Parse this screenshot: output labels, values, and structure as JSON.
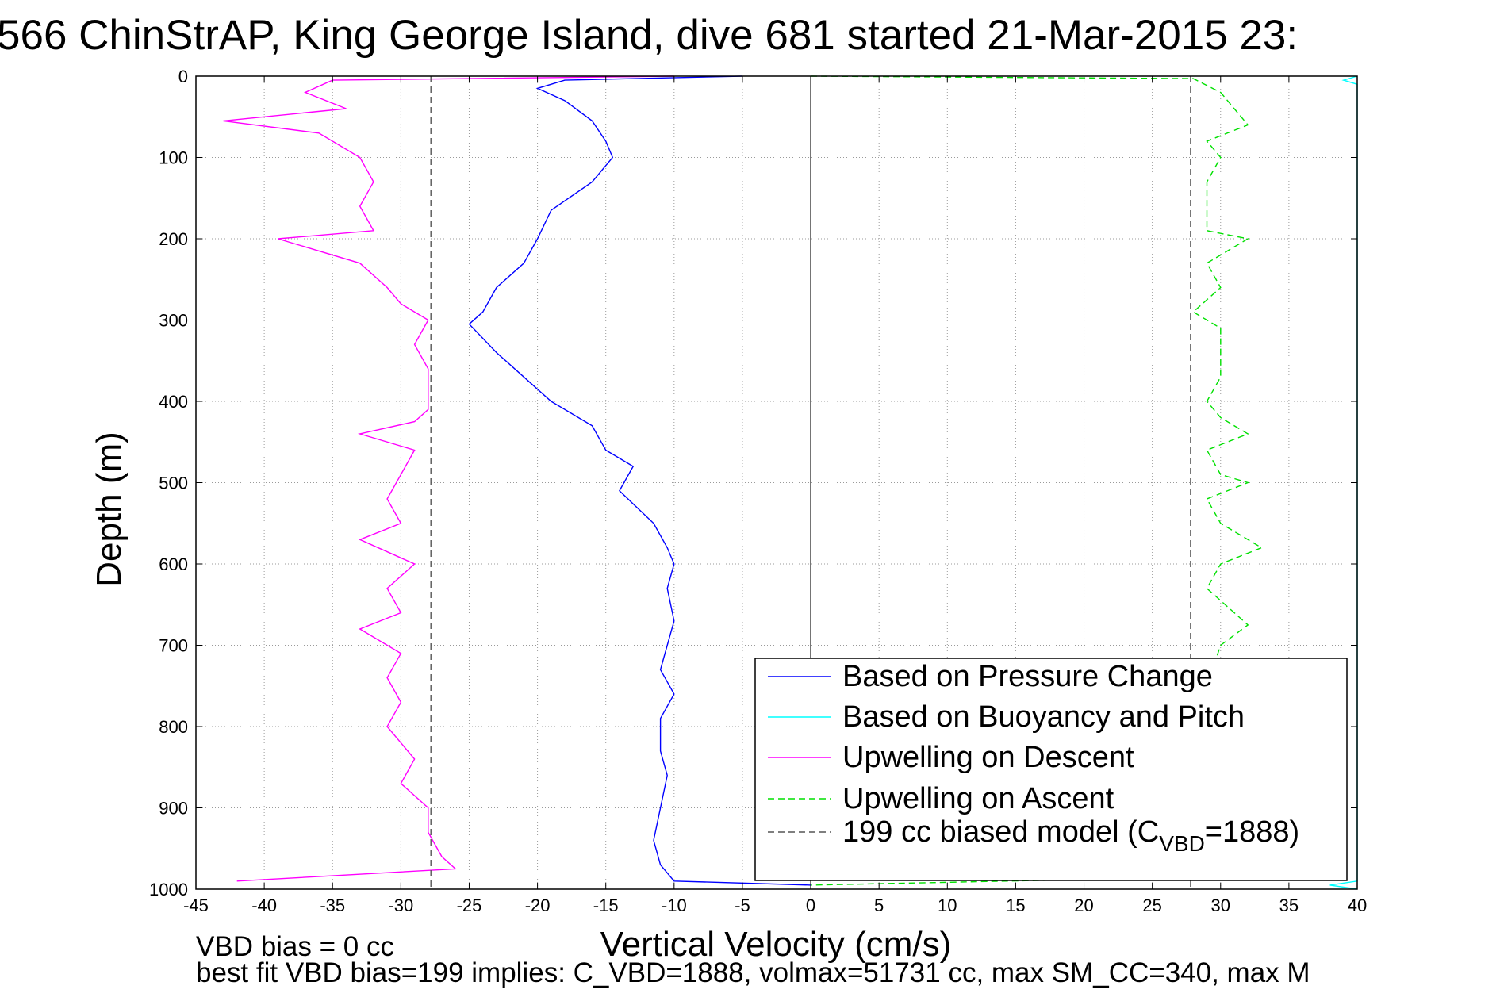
{
  "chart_data": {
    "type": "line",
    "title": "566 ChinStrAP, King George Island, dive 681 started 21-Mar-2015 23:",
    "xlabel": "Vertical Velocity (cm/s)",
    "ylabel": "Depth (m)",
    "xlim": [
      -45,
      40
    ],
    "ylim": [
      0,
      1000
    ],
    "y_reversed": true,
    "grid": true,
    "x_ticks": [
      -45,
      -40,
      -35,
      -30,
      -25,
      -20,
      -15,
      -10,
      -5,
      0,
      5,
      10,
      15,
      20,
      25,
      30,
      35,
      40
    ],
    "y_ticks": [
      0,
      100,
      200,
      300,
      400,
      500,
      600,
      700,
      800,
      900,
      1000
    ],
    "legend_position": "bottom-right",
    "notes": [
      "VBD bias = 0 cc",
      "best fit VBD bias=199 implies: C_VBD=1888, volmax=51731 cc, max SM_CC=340, max M"
    ],
    "series": [
      {
        "name": "Based on Pressure Change",
        "color": "#0000ff",
        "style": "solid",
        "points": [
          [
            -5,
            0
          ],
          [
            -18,
            5
          ],
          [
            -20,
            15
          ],
          [
            -18,
            30
          ],
          [
            -16,
            55
          ],
          [
            -15,
            80
          ],
          [
            -14.5,
            100
          ],
          [
            -16,
            130
          ],
          [
            -19,
            165
          ],
          [
            -20,
            200
          ],
          [
            -21,
            230
          ],
          [
            -23,
            260
          ],
          [
            -24,
            290
          ],
          [
            -25,
            305
          ],
          [
            -23,
            340
          ],
          [
            -21,
            370
          ],
          [
            -19,
            400
          ],
          [
            -16,
            430
          ],
          [
            -15,
            460
          ],
          [
            -13,
            480
          ],
          [
            -14,
            510
          ],
          [
            -11.5,
            550
          ],
          [
            -10.5,
            580
          ],
          [
            -10,
            600
          ],
          [
            -10.5,
            630
          ],
          [
            -10,
            670
          ],
          [
            -10.5,
            700
          ],
          [
            -11,
            730
          ],
          [
            -10,
            760
          ],
          [
            -11,
            790
          ],
          [
            -11,
            830
          ],
          [
            -10.5,
            860
          ],
          [
            -11,
            900
          ],
          [
            -11.5,
            940
          ],
          [
            -11,
            970
          ],
          [
            -10,
            990
          ],
          [
            0,
            995
          ]
        ]
      },
      {
        "name": "Based on Buoyancy and Pitch",
        "color": "#00ffff",
        "style": "solid",
        "points": [
          [
            40,
            0
          ],
          [
            39,
            5
          ],
          [
            40,
            10
          ],
          [
            40,
            990
          ],
          [
            38,
            995
          ],
          [
            40,
            1000
          ]
        ]
      },
      {
        "name": "Upwelling on Descent",
        "color": "#ff00ff",
        "style": "solid",
        "points": [
          [
            -10,
            0
          ],
          [
            -35,
            5
          ],
          [
            -37,
            20
          ],
          [
            -34,
            40
          ],
          [
            -43,
            55
          ],
          [
            -36,
            70
          ],
          [
            -33,
            100
          ],
          [
            -32,
            130
          ],
          [
            -33,
            160
          ],
          [
            -32,
            190
          ],
          [
            -39,
            200
          ],
          [
            -33,
            230
          ],
          [
            -31,
            260
          ],
          [
            -30,
            280
          ],
          [
            -28,
            300
          ],
          [
            -29,
            330
          ],
          [
            -28,
            360
          ],
          [
            -28,
            390
          ],
          [
            -28,
            410
          ],
          [
            -29,
            425
          ],
          [
            -33,
            440
          ],
          [
            -29,
            460
          ],
          [
            -30,
            490
          ],
          [
            -31,
            520
          ],
          [
            -30,
            550
          ],
          [
            -33,
            570
          ],
          [
            -29,
            600
          ],
          [
            -31,
            630
          ],
          [
            -30,
            660
          ],
          [
            -33,
            680
          ],
          [
            -30,
            710
          ],
          [
            -31,
            740
          ],
          [
            -30,
            770
          ],
          [
            -31,
            800
          ],
          [
            -29,
            840
          ],
          [
            -30,
            870
          ],
          [
            -28,
            900
          ],
          [
            -28,
            930
          ],
          [
            -27,
            960
          ],
          [
            -26,
            975
          ],
          [
            -42,
            990
          ]
        ]
      },
      {
        "name": "Upwelling on Ascent",
        "color": "#00e000",
        "style": "dashed",
        "points": [
          [
            0,
            0
          ],
          [
            28,
            3
          ],
          [
            30,
            20
          ],
          [
            31,
            40
          ],
          [
            32,
            60
          ],
          [
            29,
            80
          ],
          [
            30,
            100
          ],
          [
            29,
            130
          ],
          [
            29,
            160
          ],
          [
            29,
            190
          ],
          [
            32,
            200
          ],
          [
            29,
            230
          ],
          [
            30,
            260
          ],
          [
            28,
            290
          ],
          [
            30,
            310
          ],
          [
            30,
            340
          ],
          [
            30,
            370
          ],
          [
            29,
            400
          ],
          [
            30,
            420
          ],
          [
            32,
            440
          ],
          [
            29,
            460
          ],
          [
            30,
            490
          ],
          [
            32,
            500
          ],
          [
            29,
            520
          ],
          [
            30,
            550
          ],
          [
            33,
            580
          ],
          [
            30,
            600
          ],
          [
            29,
            630
          ],
          [
            31,
            660
          ],
          [
            32,
            675
          ],
          [
            30,
            700
          ],
          [
            29,
            750
          ],
          [
            30,
            800
          ],
          [
            29,
            850
          ],
          [
            29,
            900
          ],
          [
            29,
            950
          ],
          [
            29,
            985
          ],
          [
            0,
            995
          ]
        ]
      },
      {
        "name": "199 cc biased model (C_VBD=1888)",
        "legend_label": "199 cc biased model (C",
        "legend_subscript": "VBD",
        "legend_suffix": "=1888)",
        "color": "#555555",
        "style": "dashed",
        "points": [
          [
            -27.8,
            0
          ],
          [
            -27.8,
            1000
          ]
        ],
        "points_right": [
          [
            27.8,
            0
          ],
          [
            27.8,
            1000
          ]
        ]
      }
    ]
  }
}
